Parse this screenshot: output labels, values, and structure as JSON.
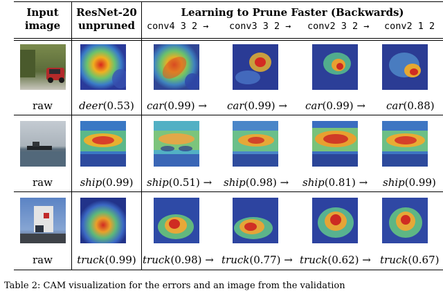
{
  "header": {
    "col1": "Input image",
    "col1_l1": "Input",
    "col1_l2": "image",
    "col2_l1": "ResNet-20",
    "col2_l2": "unpruned",
    "group": "Learning to Prune Faster (Backwards)",
    "layers": [
      "conv4_3_2",
      "conv3_3_2",
      "conv2_3_2",
      "conv2_1_2"
    ],
    "layer_display": [
      "conv4 3 2 →",
      "conv3 3 2 →",
      "conv2 3 2 →",
      "conv2 1 2"
    ]
  },
  "rows": [
    {
      "input_label": "raw",
      "unpruned": {
        "class": "deer",
        "score": "(0.53)"
      },
      "pruned": [
        {
          "class": "car",
          "score": "(0.99) →"
        },
        {
          "class": "car",
          "score": "(0.99) →"
        },
        {
          "class": "car",
          "score": "(0.99) →"
        },
        {
          "class": "car",
          "score": "(0.88)"
        }
      ]
    },
    {
      "input_label": "raw",
      "unpruned": {
        "class": "ship",
        "score": "(0.99)"
      },
      "pruned": [
        {
          "class": "ship",
          "score": "(0.51) →"
        },
        {
          "class": "ship",
          "score": "(0.98) →"
        },
        {
          "class": "ship",
          "score": "(0.81) →"
        },
        {
          "class": "ship",
          "score": "(0.99)"
        }
      ]
    },
    {
      "input_label": "raw",
      "unpruned": {
        "class": "truck",
        "score": "(0.99)"
      },
      "pruned": [
        {
          "class": "truck",
          "score": "(0.98) →"
        },
        {
          "class": "truck",
          "score": "(0.77) →"
        },
        {
          "class": "truck",
          "score": "(0.62) →"
        },
        {
          "class": "truck",
          "score": "(0.67)"
        }
      ]
    }
  ],
  "caption": "Table 2: CAM visualization for the errors and an image from the validation"
}
